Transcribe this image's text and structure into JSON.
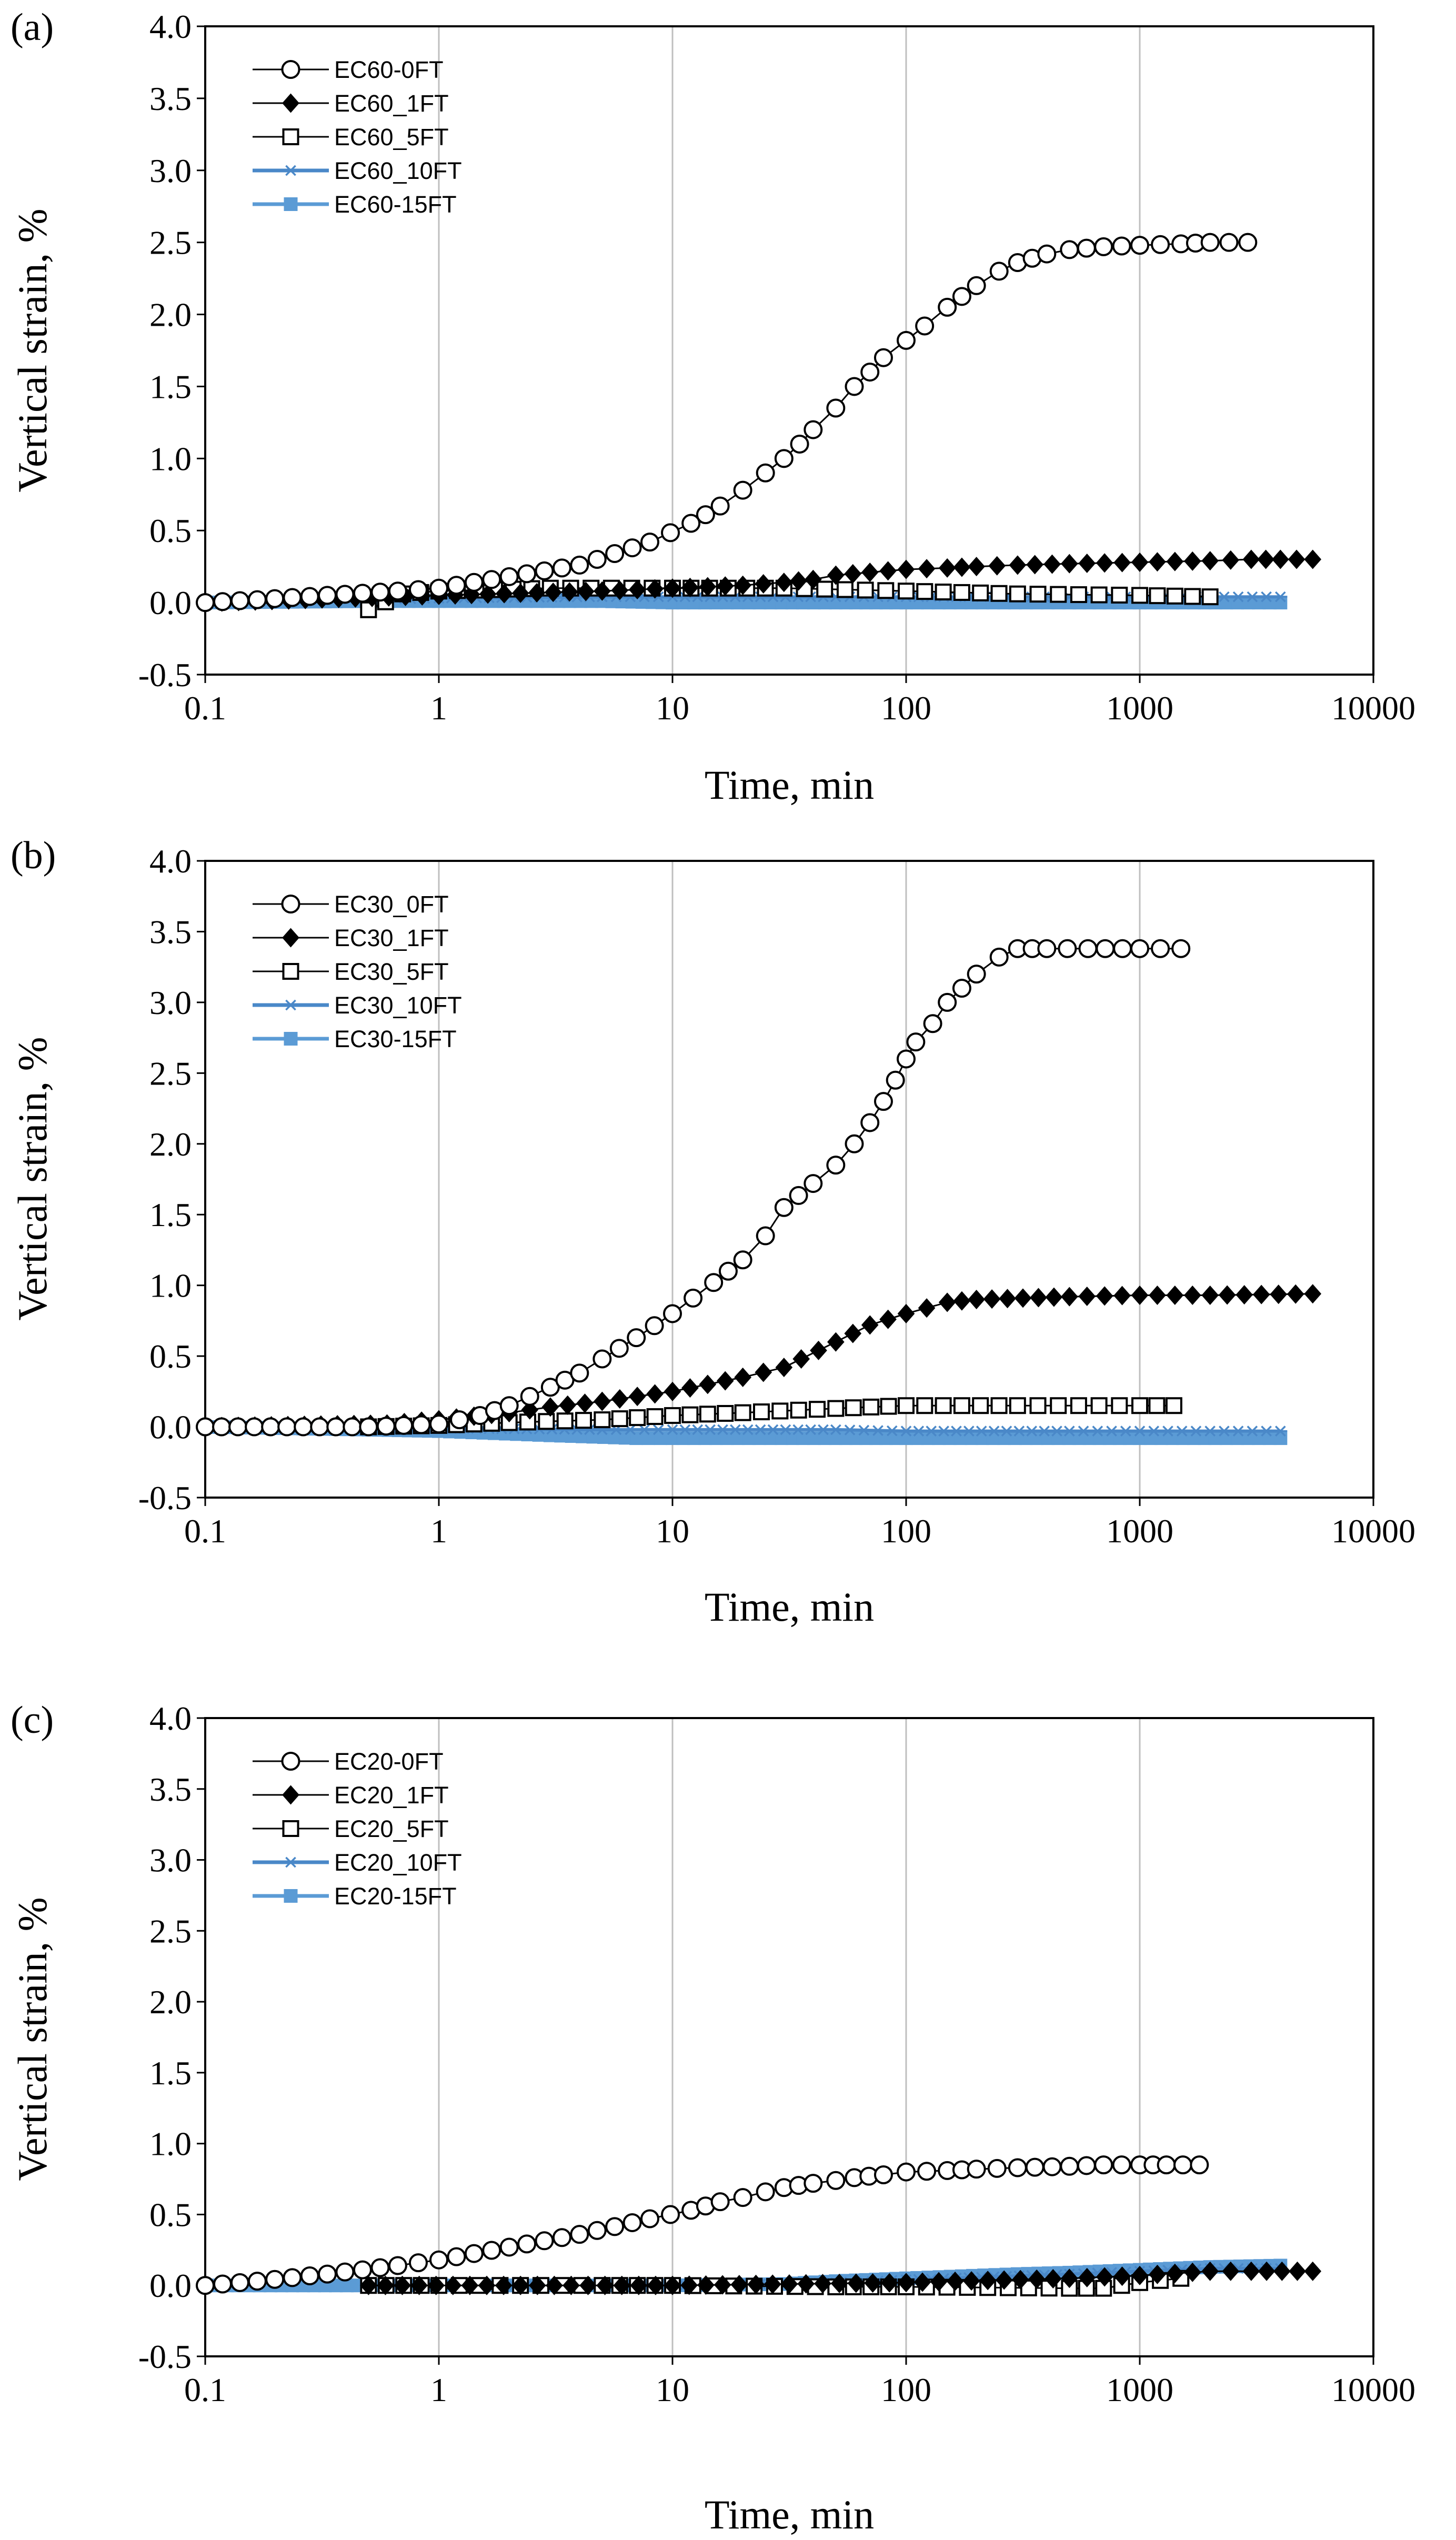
{
  "figure": {
    "panels": [
      {
        "label": "(a)",
        "xlabel": "Time, min",
        "ylabel": "Vertical strain, %"
      },
      {
        "label": "(b)",
        "xlabel": "Time, min",
        "ylabel": "Vertical strain, %"
      },
      {
        "label": "(c)",
        "xlabel": "Time, min",
        "ylabel": "Vertical strain, %"
      }
    ]
  },
  "chart_data": [
    {
      "type": "scatter",
      "panel": "(a)",
      "title": "",
      "xlabel": "Time, min",
      "ylabel": "Vertical strain, %",
      "xscale": "log",
      "xlim": [
        0.1,
        10000
      ],
      "ylim": [
        -0.5,
        4.0
      ],
      "xticks": [
        "0.1",
        "1",
        "10",
        "100",
        "1000",
        "10000"
      ],
      "yticks": [
        "-0.5",
        "0.0",
        "0.5",
        "1.0",
        "1.5",
        "2.0",
        "2.5",
        "3.0",
        "3.5",
        "4.0"
      ],
      "grid": "vertical",
      "legend_position": "top-left",
      "series": [
        {
          "name": "EC60-0FT",
          "marker": "open-circle",
          "color": "#000000",
          "x": [
            0.1,
            0.167,
            0.333,
            0.667,
            1,
            2,
            4,
            8,
            12,
            16,
            20,
            25,
            30,
            35,
            40,
            50,
            60,
            70,
            80,
            100,
            120,
            150,
            200,
            250,
            300,
            400,
            500,
            700,
            1000,
            1500,
            2000,
            2900
          ],
          "y": [
            0,
            0.02,
            0.05,
            0.08,
            0.1,
            0.18,
            0.26,
            0.42,
            0.55,
            0.67,
            0.78,
            0.9,
            1.0,
            1.1,
            1.2,
            1.35,
            1.5,
            1.6,
            1.7,
            1.82,
            1.92,
            2.05,
            2.2,
            2.3,
            2.36,
            2.42,
            2.45,
            2.47,
            2.48,
            2.49,
            2.5,
            2.5
          ]
        },
        {
          "name": "EC60_1FT",
          "marker": "diamond",
          "color": "#000000",
          "x": [
            0.1,
            1,
            5,
            10,
            20,
            30,
            40,
            50,
            70,
            100,
            150,
            200,
            300,
            500,
            1000,
            2000,
            3000,
            4000,
            5500
          ],
          "y": [
            0,
            0.05,
            0.08,
            0.1,
            0.12,
            0.14,
            0.16,
            0.19,
            0.21,
            0.23,
            0.24,
            0.25,
            0.26,
            0.27,
            0.28,
            0.29,
            0.3,
            0.3,
            0.3
          ]
        },
        {
          "name": "EC60_5FT",
          "marker": "open-square",
          "color": "#000000",
          "x": [
            0.5,
            0.7,
            1,
            3,
            10,
            30,
            100,
            300,
            1000,
            2000
          ],
          "y": [
            -0.05,
            0.06,
            0.08,
            0.1,
            0.1,
            0.1,
            0.08,
            0.06,
            0.05,
            0.04
          ]
        },
        {
          "name": "EC60_10FT",
          "marker": "asterisk",
          "color": "#4a88c8",
          "x": [
            0.5,
            1,
            5,
            10,
            50,
            100,
            500,
            1000,
            2000,
            4000
          ],
          "y": [
            0.02,
            0.03,
            0.04,
            0.04,
            0.04,
            0.04,
            0.04,
            0.04,
            0.04,
            0.04
          ]
        },
        {
          "name": "EC60-15FT",
          "marker": "filled-square",
          "color": "#5b9bd5",
          "x": [
            0.1,
            0.5,
            1,
            5,
            10,
            50,
            100,
            500,
            1000,
            4000
          ],
          "y": [
            0,
            0.01,
            0.01,
            0.01,
            0,
            0,
            0,
            0,
            0,
            0
          ]
        }
      ]
    },
    {
      "type": "scatter",
      "panel": "(b)",
      "title": "",
      "xlabel": "Time, min",
      "ylabel": "Vertical strain, %",
      "xscale": "log",
      "xlim": [
        0.1,
        10000
      ],
      "ylim": [
        -0.5,
        4.0
      ],
      "xticks": [
        "0.1",
        "1",
        "10",
        "100",
        "1000",
        "10000"
      ],
      "yticks": [
        "-0.5",
        "0.0",
        "0.5",
        "1.0",
        "1.5",
        "2.0",
        "2.5",
        "3.0",
        "3.5",
        "4.0"
      ],
      "grid": "vertical",
      "legend_position": "top-left",
      "series": [
        {
          "name": "EC30_0FT",
          "marker": "open-circle",
          "color": "#000000",
          "x": [
            0.1,
            0.5,
            1,
            1.5,
            2,
            3,
            4,
            5,
            7,
            10,
            15,
            20,
            25,
            30,
            40,
            50,
            60,
            70,
            80,
            90,
            100,
            110,
            130,
            150,
            200,
            250,
            300,
            400,
            600,
            1000,
            1500
          ],
          "y": [
            0,
            0,
            0.02,
            0.08,
            0.15,
            0.28,
            0.38,
            0.48,
            0.63,
            0.8,
            1.02,
            1.18,
            1.35,
            1.55,
            1.72,
            1.85,
            2.0,
            2.15,
            2.3,
            2.45,
            2.6,
            2.72,
            2.85,
            3.0,
            3.2,
            3.32,
            3.38,
            3.38,
            3.38,
            3.38,
            3.38
          ]
        },
        {
          "name": "EC30_1FT",
          "marker": "diamond",
          "color": "#000000",
          "x": [
            0.1,
            0.6,
            1,
            2,
            3,
            5,
            10,
            20,
            30,
            50,
            70,
            100,
            150,
            200,
            500,
            1000,
            2000,
            5500
          ],
          "y": [
            0,
            0.02,
            0.05,
            0.1,
            0.14,
            0.18,
            0.25,
            0.35,
            0.42,
            0.6,
            0.72,
            0.8,
            0.88,
            0.9,
            0.92,
            0.93,
            0.93,
            0.94
          ]
        },
        {
          "name": "EC30_5FT",
          "marker": "open-square",
          "color": "#000000",
          "x": [
            0.5,
            1,
            2,
            5,
            10,
            20,
            50,
            100,
            300,
            1000,
            1400
          ],
          "y": [
            0,
            0.01,
            0.03,
            0.05,
            0.08,
            0.1,
            0.13,
            0.15,
            0.15,
            0.15,
            0.15
          ]
        },
        {
          "name": "EC30_10FT",
          "marker": "asterisk",
          "color": "#4a88c8",
          "x": [
            0.5,
            1,
            5,
            10,
            50,
            100,
            500,
            1000,
            2000,
            4000
          ],
          "y": [
            0,
            -0.01,
            -0.02,
            -0.02,
            -0.02,
            -0.03,
            -0.03,
            -0.03,
            -0.03,
            -0.03
          ]
        },
        {
          "name": "EC30-15FT",
          "marker": "filled-square",
          "color": "#5b9bd5",
          "x": [
            0.1,
            0.5,
            1,
            3,
            7,
            10,
            50,
            100,
            500,
            1000,
            4000
          ],
          "y": [
            0,
            -0.02,
            -0.03,
            -0.06,
            -0.08,
            -0.08,
            -0.08,
            -0.08,
            -0.08,
            -0.08,
            -0.08
          ]
        }
      ]
    },
    {
      "type": "scatter",
      "panel": "(c)",
      "title": "",
      "xlabel": "Time, min",
      "ylabel": "Vertical strain, %",
      "xscale": "log",
      "xlim": [
        0.1,
        10000
      ],
      "ylim": [
        -0.5,
        4.0
      ],
      "xticks": [
        "0.1",
        "1",
        "10",
        "100",
        "1000",
        "10000"
      ],
      "yticks": [
        "-0.5",
        "0.0",
        "0.5",
        "1.0",
        "1.5",
        "2.0",
        "2.5",
        "3.0",
        "3.5",
        "4.0"
      ],
      "grid": "vertical",
      "legend_position": "top-left",
      "series": [
        {
          "name": "EC20-0FT",
          "marker": "open-circle",
          "color": "#000000",
          "x": [
            0.1,
            0.167,
            0.333,
            0.667,
            1,
            2,
            4,
            8,
            12,
            16,
            20,
            25,
            30,
            40,
            50,
            60,
            80,
            100,
            150,
            200,
            300,
            500,
            700,
            1000,
            1300,
            1800
          ],
          "y": [
            0,
            0.03,
            0.08,
            0.14,
            0.18,
            0.27,
            0.36,
            0.47,
            0.53,
            0.59,
            0.62,
            0.66,
            0.69,
            0.72,
            0.74,
            0.76,
            0.78,
            0.8,
            0.81,
            0.82,
            0.83,
            0.84,
            0.85,
            0.85,
            0.85,
            0.85
          ]
        },
        {
          "name": "EC20_1FT",
          "marker": "diamond",
          "color": "#000000",
          "x": [
            0.5,
            10,
            100,
            500,
            1000,
            2000,
            3000,
            5500
          ],
          "y": [
            0,
            0,
            0.02,
            0.05,
            0.07,
            0.1,
            0.1,
            0.1
          ]
        },
        {
          "name": "EC20_5FT",
          "marker": "open-square",
          "color": "#000000",
          "x": [
            0.5,
            1,
            5,
            10,
            50,
            100,
            500,
            700,
            1000,
            1500
          ],
          "y": [
            0,
            0,
            0,
            0,
            -0.01,
            -0.01,
            -0.02,
            -0.02,
            0.02,
            0.05
          ]
        },
        {
          "name": "EC20_10FT",
          "marker": "asterisk",
          "color": "#4a88c8",
          "x": [
            0.5,
            1,
            5,
            10,
            50,
            100,
            500,
            1000,
            2000,
            4000
          ],
          "y": [
            0,
            0,
            0,
            0,
            0.02,
            0.04,
            0.08,
            0.1,
            0.12,
            0.12
          ]
        },
        {
          "name": "EC20-15FT",
          "marker": "filled-square",
          "color": "#5b9bd5",
          "x": [
            0.1,
            0.5,
            1,
            5,
            10,
            30,
            50,
            100,
            300,
            500,
            1000,
            2000,
            4000
          ],
          "y": [
            0,
            0,
            0,
            0,
            0,
            0.01,
            0.03,
            0.05,
            0.08,
            0.09,
            0.11,
            0.13,
            0.14
          ]
        }
      ]
    }
  ]
}
